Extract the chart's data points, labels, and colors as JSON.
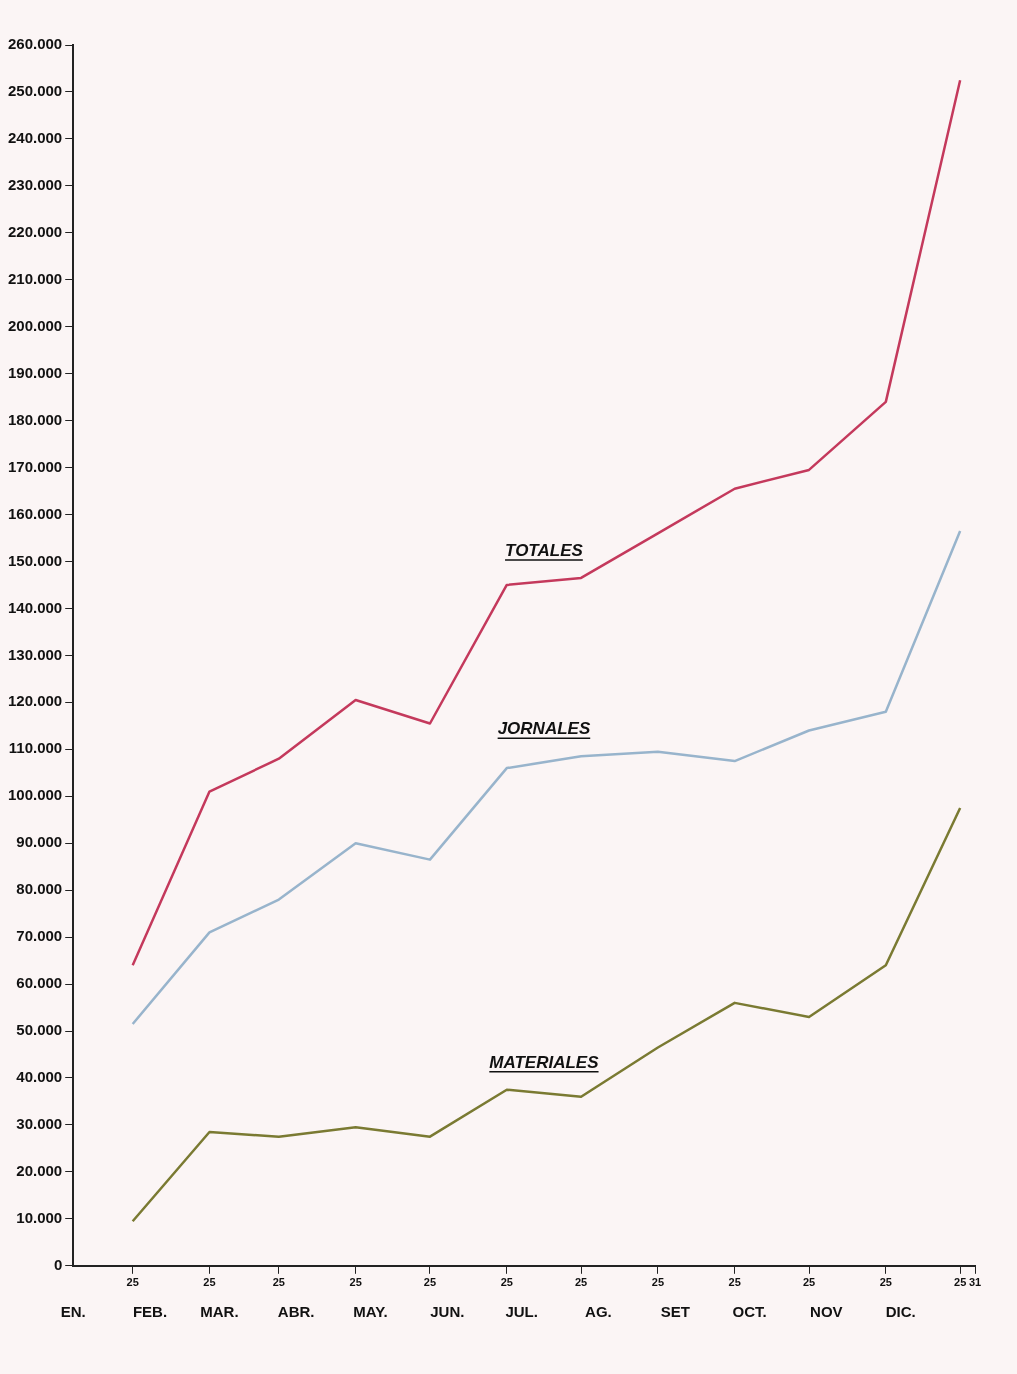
{
  "chart_data": {
    "type": "line",
    "x": [
      "--01-25",
      "--02-25",
      "--03-25",
      "--04-25",
      "--05-25",
      "--06-25",
      "--07-25",
      "--08-25",
      "--09-25",
      "--10-25",
      "--11-25",
      "--12-25"
    ],
    "series": [
      {
        "name": "TOTALES",
        "color": "#c4395c",
        "values": [
          64000,
          101000,
          108000,
          120500,
          115500,
          145000,
          146500,
          156000,
          165500,
          169500,
          184000,
          252500
        ]
      },
      {
        "name": "JORNALES",
        "color": "#98b4cc",
        "values": [
          51500,
          71000,
          78000,
          90000,
          86500,
          106000,
          108500,
          109500,
          107500,
          114000,
          118000,
          156500
        ]
      },
      {
        "name": "MATERIALES",
        "color": "#7a7a32",
        "values": [
          9500,
          28500,
          27500,
          29500,
          27500,
          37500,
          36000,
          46500,
          56000,
          53000,
          64000,
          97500
        ]
      }
    ],
    "xlim": [
      "--01-01",
      "--12-31"
    ],
    "xticks": [
      {
        "value": "--01-25",
        "label": "25"
      },
      {
        "value": "--02-25",
        "label": "25"
      },
      {
        "value": "--03-25",
        "label": "25"
      },
      {
        "value": "--04-25",
        "label": "25"
      },
      {
        "value": "--05-25",
        "label": "25"
      },
      {
        "value": "--06-25",
        "label": "25"
      },
      {
        "value": "--07-25",
        "label": "25"
      },
      {
        "value": "--08-25",
        "label": "25"
      },
      {
        "value": "--09-25",
        "label": "25"
      },
      {
        "value": "--10-25",
        "label": "25"
      },
      {
        "value": "--11-25",
        "label": "25"
      },
      {
        "value": "--12-25",
        "label": "25"
      },
      {
        "value": "--12-31",
        "label": "31"
      }
    ],
    "x2lim": [
      "--01-01",
      "--12-31"
    ],
    "x2ticks": [
      {
        "value": "--01-01",
        "label": "EN."
      },
      {
        "value": "--02-01",
        "label": "FEB."
      },
      {
        "value": "--03-01",
        "label": "MAR."
      },
      {
        "value": "--04-01",
        "label": "ABR."
      },
      {
        "value": "--05-01",
        "label": "MAY."
      },
      {
        "value": "--06-01",
        "label": "JUN."
      },
      {
        "value": "--07-01",
        "label": "JUL."
      },
      {
        "value": "--08-01",
        "label": "AG."
      },
      {
        "value": "--09-01",
        "label": "SET"
      },
      {
        "value": "--10-01",
        "label": "OCT."
      },
      {
        "value": "--11-01",
        "label": "NOV"
      },
      {
        "value": "--12-01",
        "label": "DIC."
      }
    ],
    "ylim": [
      0,
      260000
    ],
    "yticks": [
      0,
      {
        "value": 10000,
        "label": "10.000"
      },
      {
        "value": 20000,
        "label": "20.000"
      },
      {
        "value": 30000,
        "label": "30.000"
      },
      {
        "value": 40000,
        "label": "40.000"
      },
      {
        "value": 50000,
        "label": "50.000"
      },
      {
        "value": 60000,
        "label": "60.000"
      },
      {
        "value": 70000,
        "label": "70.000"
      },
      {
        "value": 80000,
        "label": "80.000"
      },
      {
        "value": 90000,
        "label": "90.000"
      },
      {
        "value": 100000,
        "label": "100.000"
      },
      {
        "value": 110000,
        "label": "110.000"
      },
      {
        "value": 120000,
        "label": "120.000"
      },
      {
        "value": 130000,
        "label": "130.000"
      },
      {
        "value": 140000,
        "label": "140.000"
      },
      {
        "value": 150000,
        "label": "150.000"
      },
      {
        "value": 160000,
        "label": "160.000"
      },
      {
        "value": 170000,
        "label": "170.000"
      },
      {
        "value": 180000,
        "label": "180.000"
      },
      {
        "value": 190000,
        "label": "190.000"
      },
      {
        "value": 200000,
        "label": "200.000"
      },
      {
        "value": 210000,
        "label": "210.000"
      },
      {
        "value": 220000,
        "label": "220.000"
      },
      {
        "value": 230000,
        "label": "230.000"
      },
      {
        "value": 240000,
        "label": "240.000"
      },
      {
        "value": 250000,
        "label": "250.000"
      },
      {
        "value": 260000,
        "label": "260.000"
      }
    ],
    "grid": false,
    "legend": false,
    "marker": "none",
    "line_style": "solid"
  }
}
